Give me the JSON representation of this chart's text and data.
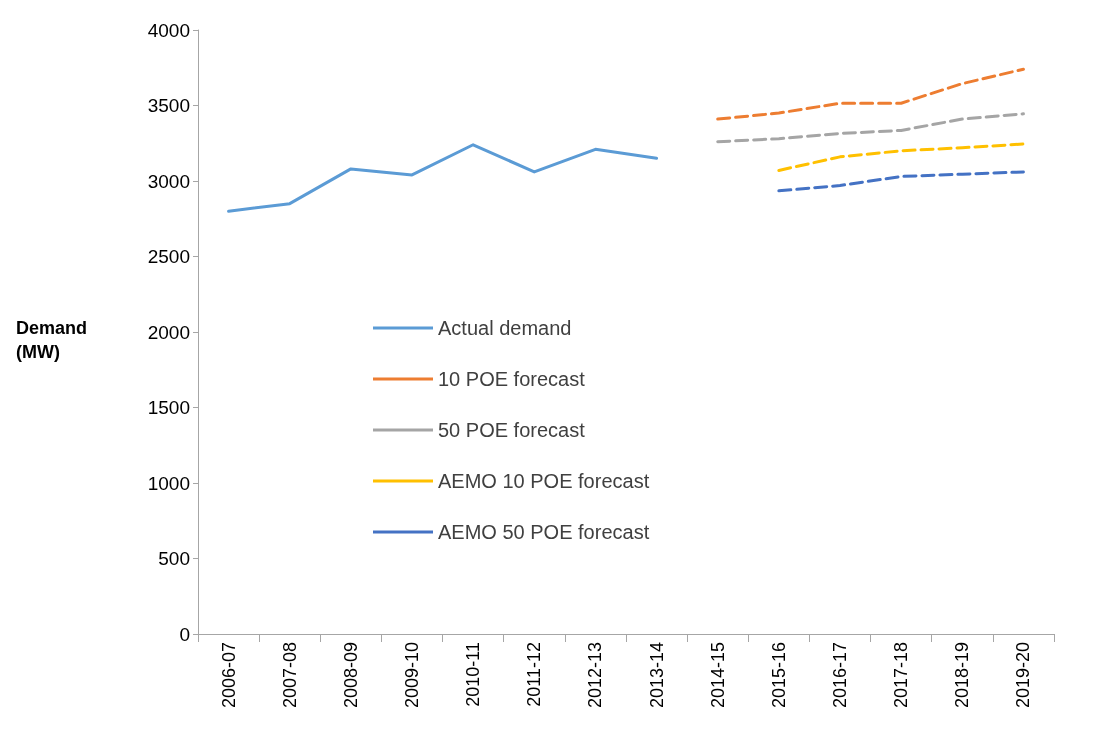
{
  "chart_data": {
    "type": "line",
    "ylabel": "Demand\n(MW)",
    "categories": [
      "2006-07",
      "2007-08",
      "2008-09",
      "2009-10",
      "2010-11",
      "2011-12",
      "2012-13",
      "2013-14",
      "2014-15",
      "2015-16",
      "2016-17",
      "2017-18",
      "2018-19",
      "2019-20"
    ],
    "series": [
      {
        "name": "Actual demand",
        "color": "#5b9bd5",
        "line_style": "solid",
        "values": [
          2800,
          2850,
          3080,
          3040,
          3240,
          3060,
          3210,
          3150,
          null,
          null,
          null,
          null,
          null,
          null
        ]
      },
      {
        "name": "10 POE forecast",
        "color": "#ed7d31",
        "line_style": "dashed",
        "values": [
          null,
          null,
          null,
          null,
          null,
          null,
          null,
          null,
          3410,
          3450,
          3515,
          3515,
          3645,
          3740
        ]
      },
      {
        "name": "50 POE forecast",
        "color": "#a5a5a5",
        "line_style": "dashed",
        "values": [
          null,
          null,
          null,
          null,
          null,
          null,
          null,
          null,
          3260,
          3280,
          3315,
          3335,
          3410,
          3445
        ]
      },
      {
        "name": "AEMO 10 POE forecast",
        "color": "#ffc000",
        "line_style": "dashed",
        "values": [
          null,
          null,
          null,
          null,
          null,
          null,
          null,
          null,
          null,
          3070,
          3160,
          3200,
          3220,
          3245
        ]
      },
      {
        "name": "AEMO 50 POE forecast",
        "color": "#4472c4",
        "line_style": "dashed",
        "values": [
          null,
          null,
          null,
          null,
          null,
          null,
          null,
          null,
          null,
          2935,
          2970,
          3030,
          3045,
          3060
        ]
      }
    ],
    "ylim": [
      0,
      4000
    ],
    "yticks": [
      0,
      500,
      1000,
      1500,
      2000,
      2500,
      3000,
      3500,
      4000
    ],
    "grid": false,
    "legend": "center",
    "marker": "none"
  }
}
